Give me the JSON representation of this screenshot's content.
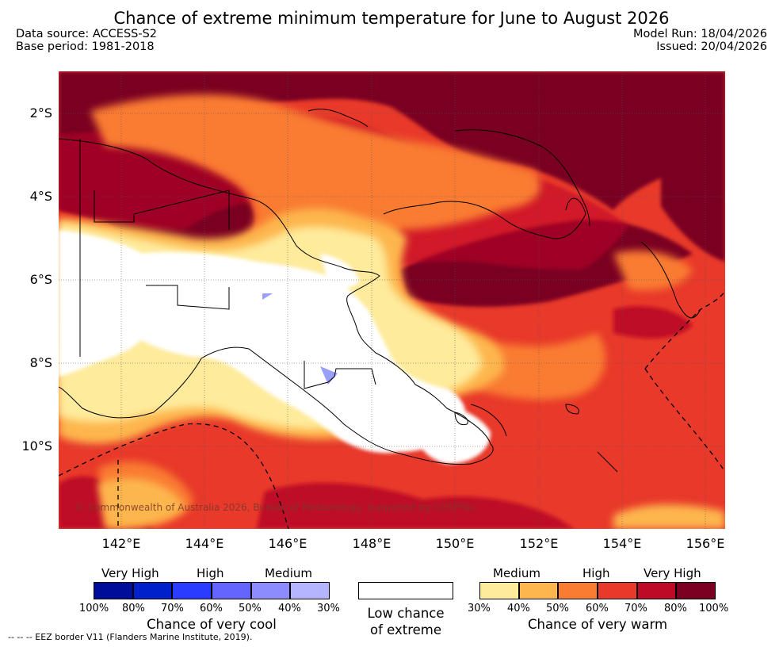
{
  "header": {
    "title": "Chance of extreme minimum temperature for June to August 2026",
    "data_source": "Data source: ACCESS-S2",
    "base_period": "Base period: 1981-2018",
    "model_run": "Model Run: 18/04/2026",
    "issued": "Issued: 20/04/2026"
  },
  "map": {
    "lat_ticks": [
      "2°S",
      "4°S",
      "6°S",
      "8°S",
      "10°S"
    ],
    "lon_ticks": [
      "142°E",
      "144°E",
      "146°E",
      "148°E",
      "150°E",
      "152°E",
      "154°E",
      "156°E"
    ],
    "copyright": "© Commonwealth of Australia 2026, Bureau of Meteorology, supported by COSPPac",
    "colors": {
      "very_high_warm": "#7a0020",
      "high_warm": "#c8102e",
      "warm_60": "#e8392a",
      "warm_50": "#f87a30",
      "warm_40": "#fbb44c",
      "warm_30": "#fee799",
      "low": "#ffffff",
      "cool": "#9aa0f8"
    }
  },
  "legend": {
    "cool": {
      "headers": [
        "Very High",
        "High",
        "Medium"
      ],
      "labels": [
        "100%",
        "80%",
        "70%",
        "60%",
        "50%",
        "40%",
        "30%"
      ],
      "colors": [
        "#000c9a",
        "#0020cc",
        "#2a3cff",
        "#6464ff",
        "#8c8cff",
        "#b4b4ff"
      ],
      "title": "Chance of very cool"
    },
    "low": {
      "title_line1": "Low chance",
      "title_line2": "of extreme"
    },
    "warm": {
      "headers": [
        "Medium",
        "High",
        "Very High"
      ],
      "labels": [
        "30%",
        "40%",
        "50%",
        "60%",
        "70%",
        "80%",
        "100%"
      ],
      "colors": [
        "#feeb9c",
        "#fdb64e",
        "#f97c31",
        "#e8392a",
        "#be0a26",
        "#7a0020"
      ],
      "title": "Chance of very warm"
    }
  },
  "footer": {
    "eez_note": "-- --  -- EEZ border V11 (Flanders Marine Institute, 2019)."
  }
}
